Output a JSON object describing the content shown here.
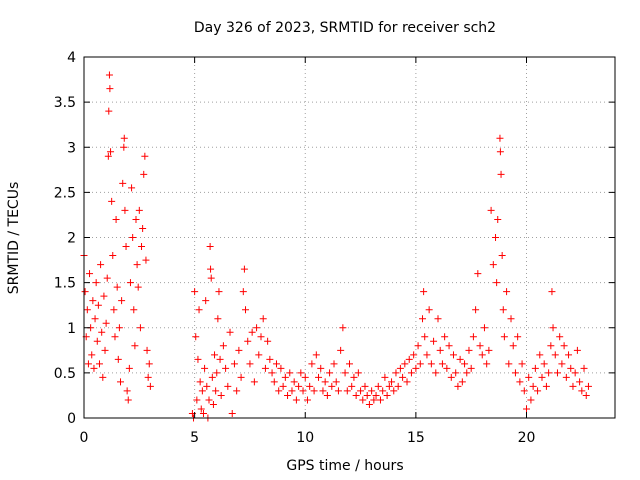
{
  "chart_data": {
    "type": "scatter",
    "title": "Day 326 of 2023, SRMTID for receiver sch2",
    "xlabel": "GPS time / hours",
    "ylabel": "SRMTID / TECUs",
    "xlim": [
      0,
      24
    ],
    "ylim": [
      0,
      4
    ],
    "xticks": [
      0,
      5,
      10,
      15,
      20
    ],
    "xtick_labels": [
      "0",
      "5",
      "10",
      "15",
      "20"
    ],
    "yticks": [
      0,
      0.5,
      1,
      1.5,
      2,
      2.5,
      3,
      3.5,
      4
    ],
    "ytick_labels": [
      "0",
      "0.5",
      "1",
      "1.5",
      "2",
      "2.5",
      "3",
      "3.5",
      "4"
    ],
    "grid": true,
    "marker": "plus",
    "color": "#ff0000",
    "series": [
      {
        "name": "SRMTID",
        "points": [
          [
            0.0,
            1.8
          ],
          [
            0.05,
            1.4
          ],
          [
            0.1,
            0.9
          ],
          [
            0.15,
            1.2
          ],
          [
            0.2,
            0.6
          ],
          [
            0.25,
            1.6
          ],
          [
            0.3,
            1.0
          ],
          [
            0.35,
            0.7
          ],
          [
            0.4,
            1.3
          ],
          [
            0.45,
            0.55
          ],
          [
            0.5,
            1.1
          ],
          [
            0.55,
            1.5
          ],
          [
            0.6,
            0.85
          ],
          [
            0.65,
            1.25
          ],
          [
            0.7,
            0.6
          ],
          [
            0.75,
            1.7
          ],
          [
            0.8,
            0.95
          ],
          [
            0.85,
            0.45
          ],
          [
            0.9,
            1.35
          ],
          [
            0.95,
            0.75
          ],
          [
            1.0,
            1.05
          ],
          [
            1.05,
            1.55
          ],
          [
            1.1,
            2.9
          ],
          [
            1.12,
            3.4
          ],
          [
            1.15,
            3.8
          ],
          [
            1.17,
            3.65
          ],
          [
            1.2,
            2.95
          ],
          [
            1.25,
            2.4
          ],
          [
            1.3,
            1.8
          ],
          [
            1.35,
            1.2
          ],
          [
            1.4,
            0.9
          ],
          [
            1.45,
            2.2
          ],
          [
            1.5,
            1.45
          ],
          [
            1.55,
            0.65
          ],
          [
            1.6,
            1.0
          ],
          [
            1.65,
            0.4
          ],
          [
            1.7,
            1.3
          ],
          [
            1.75,
            2.6
          ],
          [
            1.8,
            3.0
          ],
          [
            1.82,
            3.1
          ],
          [
            1.85,
            2.3
          ],
          [
            1.9,
            1.9
          ],
          [
            1.95,
            0.3
          ],
          [
            2.0,
            0.2
          ],
          [
            2.05,
            0.55
          ],
          [
            2.1,
            1.5
          ],
          [
            2.15,
            2.55
          ],
          [
            2.2,
            2.0
          ],
          [
            2.25,
            1.2
          ],
          [
            2.3,
            0.8
          ],
          [
            2.35,
            2.2
          ],
          [
            2.4,
            1.7
          ],
          [
            2.45,
            1.45
          ],
          [
            2.5,
            2.3
          ],
          [
            2.55,
            1.0
          ],
          [
            2.6,
            1.9
          ],
          [
            2.65,
            2.1
          ],
          [
            2.7,
            2.7
          ],
          [
            2.75,
            2.9
          ],
          [
            2.8,
            1.75
          ],
          [
            2.85,
            0.75
          ],
          [
            2.9,
            0.45
          ],
          [
            2.95,
            0.6
          ],
          [
            3.0,
            0.35
          ],
          [
            4.9,
            0.05
          ],
          [
            4.95,
            0.0
          ],
          [
            5.0,
            1.4
          ],
          [
            5.05,
            0.9
          ],
          [
            5.1,
            0.2
          ],
          [
            5.15,
            0.65
          ],
          [
            5.2,
            1.2
          ],
          [
            5.25,
            0.4
          ],
          [
            5.3,
            0.1
          ],
          [
            5.35,
            0.3
          ],
          [
            5.4,
            0.05
          ],
          [
            5.45,
            0.55
          ],
          [
            5.5,
            1.3
          ],
          [
            5.55,
            0.35
          ],
          [
            5.6,
            0.0
          ],
          [
            5.65,
            0.2
          ],
          [
            5.7,
            1.9
          ],
          [
            5.72,
            1.65
          ],
          [
            5.75,
            1.55
          ],
          [
            5.8,
            0.45
          ],
          [
            5.85,
            0.15
          ],
          [
            5.9,
            0.7
          ],
          [
            5.95,
            0.3
          ],
          [
            6.0,
            0.5
          ],
          [
            6.05,
            1.1
          ],
          [
            6.1,
            1.4
          ],
          [
            6.15,
            0.65
          ],
          [
            6.2,
            0.25
          ],
          [
            6.3,
            0.8
          ],
          [
            6.4,
            0.55
          ],
          [
            6.5,
            0.35
          ],
          [
            6.6,
            0.95
          ],
          [
            6.7,
            0.05
          ],
          [
            6.8,
            0.6
          ],
          [
            6.9,
            0.3
          ],
          [
            7.0,
            0.75
          ],
          [
            7.1,
            0.45
          ],
          [
            7.2,
            1.4
          ],
          [
            7.25,
            1.65
          ],
          [
            7.3,
            1.2
          ],
          [
            7.4,
            0.85
          ],
          [
            7.5,
            0.6
          ],
          [
            7.6,
            0.95
          ],
          [
            7.7,
            0.4
          ],
          [
            7.8,
            1.0
          ],
          [
            7.9,
            0.7
          ],
          [
            8.0,
            0.9
          ],
          [
            8.1,
            1.1
          ],
          [
            8.2,
            0.55
          ],
          [
            8.3,
            0.85
          ],
          [
            8.4,
            0.65
          ],
          [
            8.5,
            0.5
          ],
          [
            8.6,
            0.4
          ],
          [
            8.7,
            0.6
          ],
          [
            8.8,
            0.3
          ],
          [
            8.9,
            0.55
          ],
          [
            9.0,
            0.35
          ],
          [
            9.1,
            0.45
          ],
          [
            9.2,
            0.25
          ],
          [
            9.3,
            0.5
          ],
          [
            9.4,
            0.3
          ],
          [
            9.5,
            0.4
          ],
          [
            9.6,
            0.2
          ],
          [
            9.7,
            0.35
          ],
          [
            9.8,
            0.5
          ],
          [
            9.9,
            0.3
          ],
          [
            10.0,
            0.45
          ],
          [
            10.1,
            0.2
          ],
          [
            10.2,
            0.35
          ],
          [
            10.3,
            0.6
          ],
          [
            10.4,
            0.3
          ],
          [
            10.5,
            0.7
          ],
          [
            10.6,
            0.45
          ],
          [
            10.7,
            0.55
          ],
          [
            10.8,
            0.3
          ],
          [
            10.9,
            0.4
          ],
          [
            11.0,
            0.25
          ],
          [
            11.1,
            0.5
          ],
          [
            11.2,
            0.35
          ],
          [
            11.3,
            0.6
          ],
          [
            11.4,
            0.4
          ],
          [
            11.5,
            0.3
          ],
          [
            11.6,
            0.75
          ],
          [
            11.7,
            1.0
          ],
          [
            11.8,
            0.5
          ],
          [
            11.9,
            0.3
          ],
          [
            12.0,
            0.6
          ],
          [
            12.1,
            0.35
          ],
          [
            12.2,
            0.45
          ],
          [
            12.3,
            0.25
          ],
          [
            12.4,
            0.5
          ],
          [
            12.5,
            0.3
          ],
          [
            12.6,
            0.2
          ],
          [
            12.7,
            0.35
          ],
          [
            12.8,
            0.25
          ],
          [
            12.9,
            0.15
          ],
          [
            13.0,
            0.3
          ],
          [
            13.1,
            0.2
          ],
          [
            13.2,
            0.25
          ],
          [
            13.3,
            0.35
          ],
          [
            13.4,
            0.2
          ],
          [
            13.5,
            0.3
          ],
          [
            13.6,
            0.45
          ],
          [
            13.7,
            0.25
          ],
          [
            13.8,
            0.35
          ],
          [
            13.9,
            0.4
          ],
          [
            14.0,
            0.3
          ],
          [
            14.1,
            0.5
          ],
          [
            14.2,
            0.35
          ],
          [
            14.3,
            0.55
          ],
          [
            14.4,
            0.45
          ],
          [
            14.5,
            0.6
          ],
          [
            14.6,
            0.4
          ],
          [
            14.7,
            0.65
          ],
          [
            14.8,
            0.5
          ],
          [
            14.9,
            0.7
          ],
          [
            15.0,
            0.55
          ],
          [
            15.1,
            0.8
          ],
          [
            15.2,
            0.6
          ],
          [
            15.3,
            1.1
          ],
          [
            15.35,
            1.4
          ],
          [
            15.4,
            0.9
          ],
          [
            15.5,
            0.7
          ],
          [
            15.6,
            1.2
          ],
          [
            15.7,
            0.6
          ],
          [
            15.8,
            0.85
          ],
          [
            15.9,
            0.5
          ],
          [
            16.0,
            1.1
          ],
          [
            16.1,
            0.75
          ],
          [
            16.2,
            0.6
          ],
          [
            16.3,
            0.9
          ],
          [
            16.4,
            0.55
          ],
          [
            16.5,
            0.8
          ],
          [
            16.6,
            0.45
          ],
          [
            16.7,
            0.7
          ],
          [
            16.8,
            0.5
          ],
          [
            16.9,
            0.35
          ],
          [
            17.0,
            0.65
          ],
          [
            17.1,
            0.4
          ],
          [
            17.2,
            0.6
          ],
          [
            17.3,
            0.5
          ],
          [
            17.4,
            0.75
          ],
          [
            17.5,
            0.55
          ],
          [
            17.6,
            0.9
          ],
          [
            17.7,
            1.2
          ],
          [
            17.8,
            1.6
          ],
          [
            17.9,
            0.8
          ],
          [
            18.0,
            0.7
          ],
          [
            18.1,
            1.0
          ],
          [
            18.2,
            0.6
          ],
          [
            18.3,
            0.75
          ],
          [
            18.4,
            2.3
          ],
          [
            18.5,
            1.7
          ],
          [
            18.6,
            2.0
          ],
          [
            18.65,
            1.5
          ],
          [
            18.7,
            2.2
          ],
          [
            18.8,
            3.1
          ],
          [
            18.82,
            2.95
          ],
          [
            18.85,
            2.7
          ],
          [
            18.9,
            1.8
          ],
          [
            18.95,
            1.2
          ],
          [
            19.0,
            0.9
          ],
          [
            19.1,
            1.4
          ],
          [
            19.2,
            0.6
          ],
          [
            19.3,
            1.1
          ],
          [
            19.4,
            0.8
          ],
          [
            19.5,
            0.5
          ],
          [
            19.6,
            0.9
          ],
          [
            19.7,
            0.4
          ],
          [
            19.8,
            0.6
          ],
          [
            19.9,
            0.3
          ],
          [
            20.0,
            0.1
          ],
          [
            20.1,
            0.45
          ],
          [
            20.2,
            0.2
          ],
          [
            20.3,
            0.35
          ],
          [
            20.4,
            0.55
          ],
          [
            20.5,
            0.3
          ],
          [
            20.6,
            0.7
          ],
          [
            20.7,
            0.45
          ],
          [
            20.8,
            0.6
          ],
          [
            20.9,
            0.35
          ],
          [
            21.0,
            0.5
          ],
          [
            21.1,
            0.8
          ],
          [
            21.15,
            1.4
          ],
          [
            21.2,
            1.0
          ],
          [
            21.3,
            0.7
          ],
          [
            21.4,
            0.5
          ],
          [
            21.5,
            0.9
          ],
          [
            21.6,
            0.6
          ],
          [
            21.7,
            0.8
          ],
          [
            21.8,
            0.45
          ],
          [
            21.9,
            0.7
          ],
          [
            22.0,
            0.55
          ],
          [
            22.1,
            0.35
          ],
          [
            22.2,
            0.5
          ],
          [
            22.3,
            0.75
          ],
          [
            22.4,
            0.4
          ],
          [
            22.5,
            0.3
          ],
          [
            22.6,
            0.55
          ],
          [
            22.7,
            0.25
          ],
          [
            22.8,
            0.35
          ]
        ]
      }
    ]
  }
}
